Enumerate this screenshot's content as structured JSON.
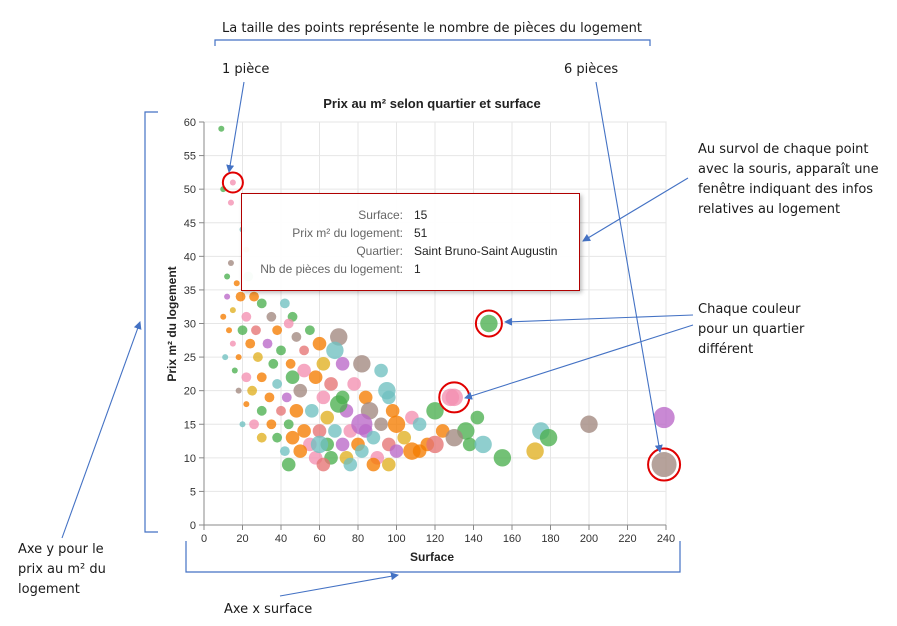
{
  "annotations": {
    "size_note": "La taille des points représente le nombre de pièces du logement",
    "one_room": "1 pièce",
    "six_rooms": "6 pièces",
    "hover_note": [
      "Au survol de chaque point",
      "avec la souris, apparaît une",
      "fenêtre indiquant des infos",
      "relatives au logement"
    ],
    "color_note": [
      "Chaque couleur",
      "pour un quartier",
      "différent"
    ],
    "y_axis_note": [
      "Axe y pour le",
      "prix au m² du",
      "logement"
    ],
    "x_axis_note": "Axe x surface"
  },
  "tooltip": {
    "rows": [
      {
        "key": "Surface:",
        "value": "15"
      },
      {
        "key": "Prix m² du logement:",
        "value": "51"
      },
      {
        "key": "Quartier:",
        "value": "Saint Bruno-Saint Augustin"
      },
      {
        "key": "Nb de pièces du logement:",
        "value": "1"
      }
    ]
  },
  "colors": {
    "annotation": "#4472c4",
    "highlight": "#e00000",
    "palette": [
      "#4caf50",
      "#f57c00",
      "#f48fb1",
      "#6fc0c0",
      "#a1887f",
      "#ba68c8",
      "#e0b020",
      "#e57373"
    ]
  },
  "chart_data": {
    "type": "scatter",
    "title": "Prix au m² selon quartier et surface",
    "xlabel": "Surface",
    "ylabel": "Prix m² du logement",
    "xlim": [
      0,
      240
    ],
    "ylim": [
      0,
      60
    ],
    "xticks": [
      "0",
      "20",
      "40",
      "60",
      "80",
      "100",
      "120",
      "140",
      "160",
      "180",
      "200",
      "220",
      "240"
    ],
    "yticks": [
      "0",
      "5",
      "10",
      "15",
      "20",
      "25",
      "30",
      "35",
      "40",
      "45",
      "50",
      "55",
      "60"
    ],
    "grid": true,
    "size_encoding": "rooms",
    "points": [
      {
        "x": 9,
        "y": 59,
        "rooms": 1,
        "c": 0
      },
      {
        "x": 10,
        "y": 50,
        "rooms": 1,
        "c": 0
      },
      {
        "x": 15,
        "y": 51,
        "rooms": 1,
        "c": 2
      },
      {
        "x": 14,
        "y": 48,
        "rooms": 1,
        "c": 2
      },
      {
        "x": 20,
        "y": 44,
        "rooms": 1,
        "c": 3
      },
      {
        "x": 22,
        "y": 41,
        "rooms": 1,
        "c": 1
      },
      {
        "x": 14,
        "y": 39,
        "rooms": 1,
        "c": 4
      },
      {
        "x": 12,
        "y": 37,
        "rooms": 1,
        "c": 0
      },
      {
        "x": 17,
        "y": 36,
        "rooms": 1,
        "c": 1
      },
      {
        "x": 23,
        "y": 37,
        "rooms": 2,
        "c": 0
      },
      {
        "x": 12,
        "y": 34,
        "rooms": 1,
        "c": 5
      },
      {
        "x": 19,
        "y": 34,
        "rooms": 2,
        "c": 1
      },
      {
        "x": 26,
        "y": 34,
        "rooms": 2,
        "c": 1
      },
      {
        "x": 30,
        "y": 33,
        "rooms": 2,
        "c": 0
      },
      {
        "x": 15,
        "y": 32,
        "rooms": 1,
        "c": 6
      },
      {
        "x": 10,
        "y": 31,
        "rooms": 1,
        "c": 1
      },
      {
        "x": 22,
        "y": 31,
        "rooms": 2,
        "c": 2
      },
      {
        "x": 35,
        "y": 31,
        "rooms": 2,
        "c": 4
      },
      {
        "x": 42,
        "y": 33,
        "rooms": 2,
        "c": 3
      },
      {
        "x": 46,
        "y": 31,
        "rooms": 2,
        "c": 0
      },
      {
        "x": 13,
        "y": 29,
        "rooms": 1,
        "c": 1
      },
      {
        "x": 20,
        "y": 29,
        "rooms": 2,
        "c": 0
      },
      {
        "x": 27,
        "y": 29,
        "rooms": 2,
        "c": 7
      },
      {
        "x": 38,
        "y": 29,
        "rooms": 2,
        "c": 1
      },
      {
        "x": 44,
        "y": 30,
        "rooms": 2,
        "c": 2
      },
      {
        "x": 48,
        "y": 28,
        "rooms": 2,
        "c": 4
      },
      {
        "x": 55,
        "y": 29,
        "rooms": 2,
        "c": 0
      },
      {
        "x": 15,
        "y": 27,
        "rooms": 1,
        "c": 2
      },
      {
        "x": 24,
        "y": 27,
        "rooms": 2,
        "c": 1
      },
      {
        "x": 33,
        "y": 27,
        "rooms": 2,
        "c": 5
      },
      {
        "x": 40,
        "y": 26,
        "rooms": 2,
        "c": 0
      },
      {
        "x": 52,
        "y": 26,
        "rooms": 2,
        "c": 7
      },
      {
        "x": 60,
        "y": 27,
        "rooms": 3,
        "c": 1
      },
      {
        "x": 70,
        "y": 28,
        "rooms": 4,
        "c": 4
      },
      {
        "x": 11,
        "y": 25,
        "rooms": 1,
        "c": 3
      },
      {
        "x": 18,
        "y": 25,
        "rooms": 1,
        "c": 1
      },
      {
        "x": 28,
        "y": 25,
        "rooms": 2,
        "c": 6
      },
      {
        "x": 36,
        "y": 24,
        "rooms": 2,
        "c": 0
      },
      {
        "x": 45,
        "y": 24,
        "rooms": 2,
        "c": 1
      },
      {
        "x": 52,
        "y": 23,
        "rooms": 3,
        "c": 2
      },
      {
        "x": 62,
        "y": 24,
        "rooms": 3,
        "c": 6
      },
      {
        "x": 68,
        "y": 26,
        "rooms": 4,
        "c": 3
      },
      {
        "x": 72,
        "y": 24,
        "rooms": 3,
        "c": 5
      },
      {
        "x": 82,
        "y": 24,
        "rooms": 4,
        "c": 4
      },
      {
        "x": 16,
        "y": 23,
        "rooms": 1,
        "c": 0
      },
      {
        "x": 22,
        "y": 22,
        "rooms": 2,
        "c": 2
      },
      {
        "x": 30,
        "y": 22,
        "rooms": 2,
        "c": 1
      },
      {
        "x": 38,
        "y": 21,
        "rooms": 2,
        "c": 3
      },
      {
        "x": 46,
        "y": 22,
        "rooms": 3,
        "c": 0
      },
      {
        "x": 58,
        "y": 22,
        "rooms": 3,
        "c": 1
      },
      {
        "x": 66,
        "y": 21,
        "rooms": 3,
        "c": 7
      },
      {
        "x": 78,
        "y": 21,
        "rooms": 3,
        "c": 2
      },
      {
        "x": 92,
        "y": 23,
        "rooms": 3,
        "c": 3
      },
      {
        "x": 18,
        "y": 20,
        "rooms": 1,
        "c": 4
      },
      {
        "x": 25,
        "y": 20,
        "rooms": 2,
        "c": 6
      },
      {
        "x": 34,
        "y": 19,
        "rooms": 2,
        "c": 1
      },
      {
        "x": 43,
        "y": 19,
        "rooms": 2,
        "c": 5
      },
      {
        "x": 50,
        "y": 20,
        "rooms": 3,
        "c": 4
      },
      {
        "x": 62,
        "y": 19,
        "rooms": 3,
        "c": 2
      },
      {
        "x": 72,
        "y": 19,
        "rooms": 3,
        "c": 0
      },
      {
        "x": 84,
        "y": 19,
        "rooms": 3,
        "c": 1
      },
      {
        "x": 96,
        "y": 19,
        "rooms": 3,
        "c": 3
      },
      {
        "x": 22,
        "y": 18,
        "rooms": 1,
        "c": 1
      },
      {
        "x": 30,
        "y": 17,
        "rooms": 2,
        "c": 0
      },
      {
        "x": 40,
        "y": 17,
        "rooms": 2,
        "c": 7
      },
      {
        "x": 48,
        "y": 17,
        "rooms": 3,
        "c": 1
      },
      {
        "x": 56,
        "y": 17,
        "rooms": 3,
        "c": 3
      },
      {
        "x": 64,
        "y": 16,
        "rooms": 3,
        "c": 6
      },
      {
        "x": 74,
        "y": 17,
        "rooms": 3,
        "c": 5
      },
      {
        "x": 86,
        "y": 17,
        "rooms": 4,
        "c": 4
      },
      {
        "x": 98,
        "y": 17,
        "rooms": 3,
        "c": 1
      },
      {
        "x": 108,
        "y": 16,
        "rooms": 3,
        "c": 2
      },
      {
        "x": 120,
        "y": 17,
        "rooms": 4,
        "c": 0
      },
      {
        "x": 128,
        "y": 19,
        "rooms": 4,
        "c": 2
      },
      {
        "x": 20,
        "y": 15,
        "rooms": 1,
        "c": 3
      },
      {
        "x": 26,
        "y": 15,
        "rooms": 2,
        "c": 2
      },
      {
        "x": 35,
        "y": 15,
        "rooms": 2,
        "c": 1
      },
      {
        "x": 44,
        "y": 15,
        "rooms": 2,
        "c": 0
      },
      {
        "x": 52,
        "y": 14,
        "rooms": 3,
        "c": 1
      },
      {
        "x": 60,
        "y": 14,
        "rooms": 3,
        "c": 7
      },
      {
        "x": 68,
        "y": 14,
        "rooms": 3,
        "c": 3
      },
      {
        "x": 76,
        "y": 14,
        "rooms": 3,
        "c": 2
      },
      {
        "x": 84,
        "y": 14,
        "rooms": 3,
        "c": 5
      },
      {
        "x": 92,
        "y": 15,
        "rooms": 3,
        "c": 4
      },
      {
        "x": 100,
        "y": 15,
        "rooms": 4,
        "c": 1
      },
      {
        "x": 112,
        "y": 15,
        "rooms": 3,
        "c": 3
      },
      {
        "x": 124,
        "y": 14,
        "rooms": 3,
        "c": 1
      },
      {
        "x": 136,
        "y": 14,
        "rooms": 4,
        "c": 0
      },
      {
        "x": 142,
        "y": 16,
        "rooms": 3,
        "c": 0
      },
      {
        "x": 30,
        "y": 13,
        "rooms": 2,
        "c": 6
      },
      {
        "x": 38,
        "y": 13,
        "rooms": 2,
        "c": 0
      },
      {
        "x": 46,
        "y": 13,
        "rooms": 3,
        "c": 1
      },
      {
        "x": 55,
        "y": 12,
        "rooms": 3,
        "c": 2
      },
      {
        "x": 64,
        "y": 12,
        "rooms": 3,
        "c": 0
      },
      {
        "x": 72,
        "y": 12,
        "rooms": 3,
        "c": 5
      },
      {
        "x": 80,
        "y": 12,
        "rooms": 3,
        "c": 1
      },
      {
        "x": 88,
        "y": 13,
        "rooms": 3,
        "c": 3
      },
      {
        "x": 96,
        "y": 12,
        "rooms": 3,
        "c": 7
      },
      {
        "x": 104,
        "y": 13,
        "rooms": 3,
        "c": 6
      },
      {
        "x": 116,
        "y": 12,
        "rooms": 3,
        "c": 1
      },
      {
        "x": 130,
        "y": 13,
        "rooms": 4,
        "c": 4
      },
      {
        "x": 138,
        "y": 12,
        "rooms": 3,
        "c": 0
      },
      {
        "x": 42,
        "y": 11,
        "rooms": 2,
        "c": 3
      },
      {
        "x": 50,
        "y": 11,
        "rooms": 3,
        "c": 1
      },
      {
        "x": 58,
        "y": 10,
        "rooms": 3,
        "c": 2
      },
      {
        "x": 66,
        "y": 10,
        "rooms": 3,
        "c": 0
      },
      {
        "x": 74,
        "y": 10,
        "rooms": 3,
        "c": 6
      },
      {
        "x": 82,
        "y": 11,
        "rooms": 3,
        "c": 3
      },
      {
        "x": 90,
        "y": 10,
        "rooms": 3,
        "c": 2
      },
      {
        "x": 100,
        "y": 11,
        "rooms": 3,
        "c": 5
      },
      {
        "x": 112,
        "y": 11,
        "rooms": 3,
        "c": 1
      },
      {
        "x": 44,
        "y": 9,
        "rooms": 3,
        "c": 0
      },
      {
        "x": 62,
        "y": 9,
        "rooms": 3,
        "c": 7
      },
      {
        "x": 76,
        "y": 9,
        "rooms": 3,
        "c": 3
      },
      {
        "x": 88,
        "y": 9,
        "rooms": 3,
        "c": 1
      },
      {
        "x": 96,
        "y": 9,
        "rooms": 3,
        "c": 6
      },
      {
        "x": 148,
        "y": 30,
        "rooms": 4,
        "c": 0
      },
      {
        "x": 130,
        "y": 19,
        "rooms": 4,
        "c": 2
      },
      {
        "x": 145,
        "y": 12,
        "rooms": 4,
        "c": 3
      },
      {
        "x": 155,
        "y": 10,
        "rooms": 4,
        "c": 0
      },
      {
        "x": 172,
        "y": 11,
        "rooms": 4,
        "c": 6
      },
      {
        "x": 175,
        "y": 14,
        "rooms": 4,
        "c": 3
      },
      {
        "x": 179,
        "y": 13,
        "rooms": 4,
        "c": 0
      },
      {
        "x": 200,
        "y": 15,
        "rooms": 4,
        "c": 4
      },
      {
        "x": 239,
        "y": 16,
        "rooms": 5,
        "c": 5
      },
      {
        "x": 239,
        "y": 9,
        "rooms": 6,
        "c": 4
      },
      {
        "x": 95,
        "y": 20,
        "rooms": 4,
        "c": 3
      },
      {
        "x": 82,
        "y": 15,
        "rooms": 5,
        "c": 5
      },
      {
        "x": 70,
        "y": 18,
        "rooms": 4,
        "c": 0
      },
      {
        "x": 108,
        "y": 11,
        "rooms": 4,
        "c": 1
      },
      {
        "x": 120,
        "y": 12,
        "rooms": 4,
        "c": 7
      },
      {
        "x": 60,
        "y": 12,
        "rooms": 4,
        "c": 3
      }
    ]
  }
}
